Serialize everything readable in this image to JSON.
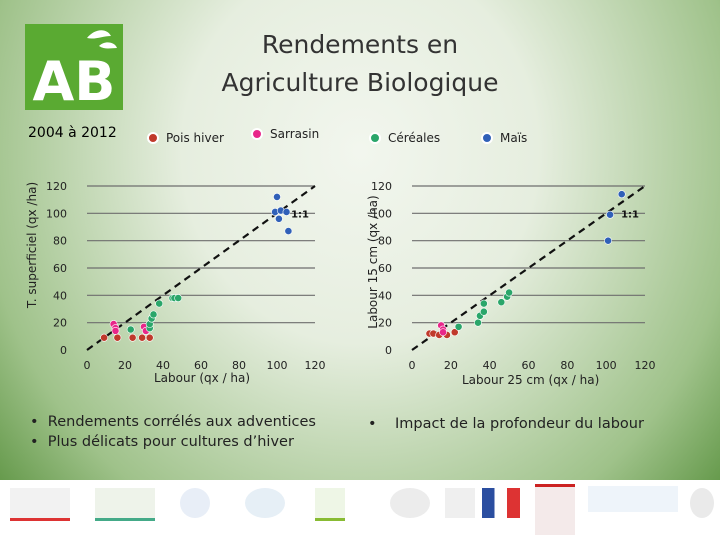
{
  "slide": {
    "logo_text": "AB",
    "title_line1": "Rendements en",
    "title_line2": "Agriculture Biologique",
    "period": "2004 à 2012"
  },
  "legend": [
    {
      "label": "Pois hiver",
      "color": "#c0392b"
    },
    {
      "label": "Sarrasin",
      "color": "#e8278a"
    },
    {
      "label": "Céréales",
      "color": "#2aa66a"
    },
    {
      "label": "Maïs",
      "color": "#3060b8"
    }
  ],
  "bullets_left": [
    "Rendements corrélés aux adventices",
    "Plus délicats pour cultures d’hiver"
  ],
  "bullets_right": [
    "Impact de la profondeur du labour"
  ],
  "chart_data": [
    {
      "type": "scatter",
      "xlabel": "Labour (qx / ha)",
      "ylabel": "T. superficiel (qx /ha)",
      "xlim": [
        0,
        120
      ],
      "ylim": [
        0,
        120
      ],
      "xticks": [
        "0",
        "20",
        "40",
        "60",
        "80",
        "100",
        "120"
      ],
      "yticks": [
        "0",
        "20",
        "40",
        "60",
        "80",
        "100",
        "120"
      ],
      "grid": true,
      "line_label": "1:1",
      "series": [
        {
          "name": "Pois hiver",
          "color": "#c0392b",
          "points": [
            [
              9,
              9
            ],
            [
              16,
              9
            ],
            [
              24,
              9
            ],
            [
              29,
              9
            ],
            [
              33,
              9
            ]
          ]
        },
        {
          "name": "Sarrasin",
          "color": "#e8278a",
          "points": [
            [
              14,
              19
            ],
            [
              15,
              16
            ],
            [
              15,
              14
            ],
            [
              30,
              17
            ],
            [
              31,
              14
            ]
          ]
        },
        {
          "name": "Céréales",
          "color": "#2aa66a",
          "points": [
            [
              23,
              15
            ],
            [
              33,
              16
            ],
            [
              33,
              19
            ],
            [
              34,
              23
            ],
            [
              35,
              26
            ],
            [
              38,
              34
            ],
            [
              45,
              38
            ],
            [
              46,
              38
            ],
            [
              48,
              38
            ]
          ]
        },
        {
          "name": "Maïs",
          "color": "#3060b8",
          "points": [
            [
              100,
              112
            ],
            [
              99,
              101
            ],
            [
              101,
              96
            ],
            [
              102,
              102
            ],
            [
              106,
              87
            ],
            [
              105,
              101
            ]
          ]
        }
      ]
    },
    {
      "type": "scatter",
      "xlabel": "Labour 25 cm (qx / ha)",
      "ylabel": "Labour 15 cm (qx /ha)",
      "xlim": [
        0,
        120
      ],
      "ylim": [
        0,
        120
      ],
      "xticks": [
        "0",
        "20",
        "40",
        "60",
        "80",
        "100",
        "120"
      ],
      "yticks": [
        "0",
        "20",
        "40",
        "60",
        "80",
        "100",
        "120"
      ],
      "grid": true,
      "line_label": "1:1",
      "series": [
        {
          "name": "Pois hiver",
          "color": "#c0392b",
          "points": [
            [
              9,
              12
            ],
            [
              11,
              12
            ],
            [
              14,
              11
            ],
            [
              18,
              11
            ],
            [
              22,
              13
            ]
          ]
        },
        {
          "name": "Sarrasin",
          "color": "#e8278a",
          "points": [
            [
              15,
              18
            ],
            [
              16,
              15
            ],
            [
              16,
              13
            ]
          ]
        },
        {
          "name": "Céréales",
          "color": "#2aa66a",
          "points": [
            [
              24,
              17
            ],
            [
              34,
              20
            ],
            [
              35,
              25
            ],
            [
              37,
              28
            ],
            [
              37,
              34
            ],
            [
              46,
              35
            ],
            [
              49,
              39
            ],
            [
              50,
              42
            ]
          ]
        },
        {
          "name": "Maïs",
          "color": "#3060b8",
          "points": [
            [
              108,
              114
            ],
            [
              102,
              99
            ],
            [
              101,
              80
            ]
          ]
        }
      ]
    }
  ]
}
